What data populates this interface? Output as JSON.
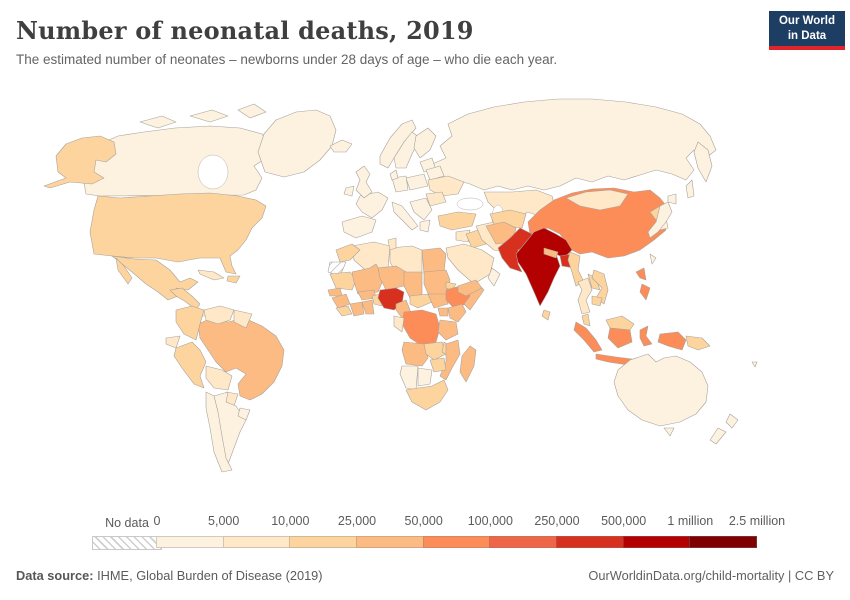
{
  "header": {
    "title": "Number of neonatal deaths, 2019",
    "subtitle": "The estimated number of neonates – newborns under 28 days of age – who die each year.",
    "logo": {
      "line1": "Our World",
      "line2": "in Data",
      "bg": "#1d3d63",
      "accent": "#e0242a"
    }
  },
  "legend": {
    "no_data_label": "No data",
    "tick_labels": [
      "0",
      "5,000",
      "10,000",
      "25,000",
      "50,000",
      "100,000",
      "250,000",
      "500,000",
      "1 million",
      "2.5 million"
    ],
    "colors": [
      "#fdf1e0",
      "#fee8c8",
      "#fdd49e",
      "#fdbb84",
      "#fc8d59",
      "#ef6548",
      "#d7301f",
      "#b30000",
      "#7f0000"
    ]
  },
  "footer": {
    "source_label": "Data source:",
    "source_text": " IHME, Global Burden of Disease (2019)",
    "credit_text": "OurWorldinData.org/child-mortality | CC BY"
  },
  "chart_data": {
    "type": "choropleth_map",
    "title": "Number of neonatal deaths, 2019",
    "year": 2019,
    "metric": "neonatal deaths per year",
    "legend_position": "bottom",
    "bin_edges": [
      "0",
      "5,000",
      "10,000",
      "25,000",
      "50,000",
      "100,000",
      "250,000",
      "500,000",
      "1 million",
      "2.5 million"
    ],
    "bin_colors": [
      "#fdf1e0",
      "#fee8c8",
      "#fdd49e",
      "#fdbb84",
      "#fc8d59",
      "#ef6548",
      "#d7301f",
      "#b30000",
      "#7f0000"
    ],
    "no_data": [
      "Western Sahara"
    ],
    "countries_by_bin": {
      "0-5,000": [
        "Canada",
        "Greenland",
        "Iceland",
        "United Kingdom",
        "Ireland",
        "Norway",
        "Sweden",
        "Finland",
        "Denmark",
        "Germany",
        "France",
        "Spain",
        "Portugal",
        "Italy",
        "Poland",
        "Balkans",
        "Greece",
        "Baltics",
        "Belarus",
        "Russia",
        "Japan",
        "South Korea",
        "Taiwan",
        "Oman",
        "Australia",
        "New Zealand",
        "Chile",
        "Argentina",
        "Uruguay",
        "Namibia",
        "Botswana"
      ],
      "5,000-10,000": [
        "Ukraine",
        "Romania",
        "Kazakhstan",
        "Mongolia",
        "Thailand",
        "Cuba",
        "Panama",
        "Venezuela",
        "Guyana",
        "Ecuador",
        "Bolivia",
        "Paraguay",
        "Algeria",
        "Tunisia",
        "Libya",
        "Syria",
        "Iran",
        "Saudi Arabia",
        "Congo-Gabon"
      ],
      "10,000-25,000": [
        "United States",
        "Mexico",
        "Central America",
        "Haiti/Dominican Rep.",
        "Colombia",
        "Peru",
        "Turkey",
        "Iraq",
        "Uzbekistan/Turkmenistan",
        "Morocco",
        "Mauritania",
        "Sierra Leone/Liberia",
        "Benin/Togo",
        "Central African Republic",
        "Eritrea",
        "Zambia",
        "Malawi",
        "Zimbabwe",
        "South Africa",
        "Sri Lanka",
        "Myanmar",
        "North Korea",
        "Laos",
        "Vietnam",
        "Cambodia",
        "Malaysia",
        "Papua New Guinea"
      ],
      "25,000-50,000": [
        "Brazil",
        "Egypt",
        "Mali",
        "Niger",
        "Chad",
        "Sudan",
        "Senegal",
        "Guinea",
        "Ivory Coast",
        "Ghana",
        "Burkina Faso",
        "Cameroon",
        "South Sudan",
        "Somalia",
        "Kenya",
        "Uganda",
        "Tanzania",
        "Angola",
        "Mozambique",
        "Madagascar",
        "Yemen",
        "Afghanistan",
        "Nepal"
      ],
      "50,000-100,000": [
        "China",
        "Indonesia",
        "Philippines",
        "Ethiopia",
        "DR Congo"
      ],
      "100,000-250,000": [],
      "250,000-500,000": [
        "Pakistan",
        "Nigeria",
        "Bangladesh"
      ],
      "500,000-1 million": [
        "India"
      ],
      "1 million-2.5 million": []
    }
  },
  "map": {
    "ocean": "#ffffff",
    "border_color": "#a8a29b",
    "fills": {
      "canada": "#fdf1e0",
      "greenland": "#fdf1e0",
      "usa": "#fdd49e",
      "mexico": "#fdd49e",
      "central-america": "#fdd49e",
      "panama": "#fee8c8",
      "cuba": "#fee8c8",
      "hispaniola": "#fdd49e",
      "colombia": "#fdd49e",
      "venezuela": "#fee8c8",
      "guyanas": "#fee8c8",
      "ecuador": "#fee8c8",
      "peru": "#fdd49e",
      "brazil": "#fdbb84",
      "bolivia": "#fee8c8",
      "paraguay": "#fee8c8",
      "uruguay": "#fdf1e0",
      "chile": "#fdf1e0",
      "argentina": "#fdf1e0",
      "iceland": "#fdf1e0",
      "uk": "#fdf1e0",
      "ireland": "#fdf1e0",
      "norway": "#fdf1e0",
      "sweden": "#fdf1e0",
      "finland": "#fdf1e0",
      "denmark": "#fdf1e0",
      "baltics": "#fdf1e0",
      "belarus": "#fdf1e0",
      "poland": "#fdf1e0",
      "germany": "#fdf1e0",
      "france": "#fdf1e0",
      "iberia": "#fdf1e0",
      "italy": "#fdf1e0",
      "balkans": "#fdf1e0",
      "greece": "#fdf1e0",
      "romania": "#fee8c8",
      "ukraine": "#fee8c8",
      "russia": "#fdf1e0",
      "kazakhstan": "#fee8c8",
      "turkey": "#fdd49e",
      "syria": "#fee8c8",
      "iraq": "#fdd49e",
      "iran": "#fee8c8",
      "saudi-arabia": "#fee8c8",
      "yemen": "#fdbb84",
      "oman": "#fdf1e0",
      "uzbekistan-turkmenistan": "#fdd49e",
      "afghanistan": "#fdbb84",
      "pakistan": "#d7301f",
      "india": "#b30000",
      "nepal": "#fdbb84",
      "bangladesh": "#d7301f",
      "sri-lanka": "#fdd49e",
      "myanmar": "#fdd49e",
      "china": "#fc8d59",
      "mongolia": "#fee8c8",
      "north-korea": "#fdd49e",
      "south-korea": "#fdf1e0",
      "japan": "#fdf1e0",
      "taiwan": "#fdf1e0",
      "thailand": "#fee8c8",
      "laos": "#fdd49e",
      "vietnam": "#fdd49e",
      "cambodia": "#fdd49e",
      "malaysia": "#fdd49e",
      "indonesia": "#fc8d59",
      "philippines": "#fc8d59",
      "papua-new-guinea": "#fdd49e",
      "australia": "#fdf1e0",
      "new-zealand": "#fdf1e0",
      "fiji": "#fdf1e0",
      "morocco": "#fdd49e",
      "western-sahara": "no-data",
      "algeria": "#fee8c8",
      "tunisia": "#fee8c8",
      "libya": "#fee8c8",
      "egypt": "#fdbb84",
      "mauritania": "#fdd49e",
      "senegal": "#fdbb84",
      "guinea": "#fdbb84",
      "sierra-leone-liberia": "#fdd49e",
      "ivory-coast": "#fdbb84",
      "ghana": "#fdbb84",
      "burkina-faso": "#fdbb84",
      "benin-togo": "#fdd49e",
      "mali": "#fdbb84",
      "niger": "#fdbb84",
      "chad": "#fdbb84",
      "sudan": "#fdbb84",
      "nigeria": "#d7301f",
      "cameroon": "#fdbb84",
      "central-african-republic": "#fdd49e",
      "south-sudan": "#fdbb84",
      "ethiopia": "#fc8d59",
      "eritrea": "#fdd49e",
      "somalia": "#fdbb84",
      "kenya": "#fdbb84",
      "uganda": "#fdbb84",
      "dr-congo": "#fc8d59",
      "congo-gabon": "#fee8c8",
      "tanzania": "#fdbb84",
      "angola": "#fdbb84",
      "zambia": "#fdd49e",
      "malawi": "#fdd49e",
      "mozambique": "#fdbb84",
      "zimbabwe": "#fdd49e",
      "namibia": "#fdf1e0",
      "botswana": "#fdf1e0",
      "south-africa": "#fdd49e",
      "madagascar": "#fdbb84"
    }
  }
}
